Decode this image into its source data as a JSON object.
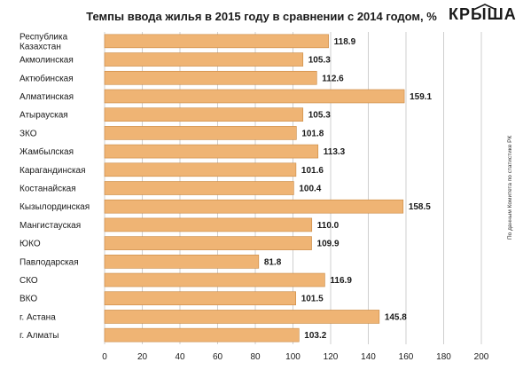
{
  "chart_data": {
    "type": "bar",
    "orientation": "horizontal",
    "title": "Темпы ввода жилья в 2015 году в сравнении с 2014 годом, %",
    "categories": [
      "Республика Казахстан",
      "Акмолинская",
      "Актюбинская",
      "Алматинская",
      "Атырауская",
      "ЗКО",
      "Жамбылская",
      "Карагандинская",
      "Костанайская",
      "Кызылординская",
      "Мангистауская",
      "ЮКО",
      "Павлодарская",
      "СКО",
      "ВКО",
      "г. Астана",
      "г. Алматы"
    ],
    "values": [
      118.9,
      105.3,
      112.6,
      159.1,
      105.3,
      101.8,
      113.3,
      101.6,
      100.4,
      158.5,
      110.0,
      109.9,
      81.8,
      116.9,
      101.5,
      145.8,
      103.2
    ],
    "value_labels": [
      "118.9",
      "105.3",
      "112.6",
      "159.1",
      "105.3",
      "101.8",
      "113.3",
      "101.6",
      "100.4",
      "158.5",
      "110.0",
      "109.9",
      "81.8",
      "116.9",
      "101.5",
      "145.8",
      "103.2"
    ],
    "xlim": [
      0,
      200
    ],
    "xticks": [
      "0",
      "20",
      "40",
      "60",
      "80",
      "100",
      "120",
      "140",
      "160",
      "180",
      "200"
    ],
    "grid": "vertical",
    "bar_color": "#efb474"
  },
  "logo": {
    "text": "КРЫША"
  },
  "source_note": "По данным Комитета по статистике РК"
}
